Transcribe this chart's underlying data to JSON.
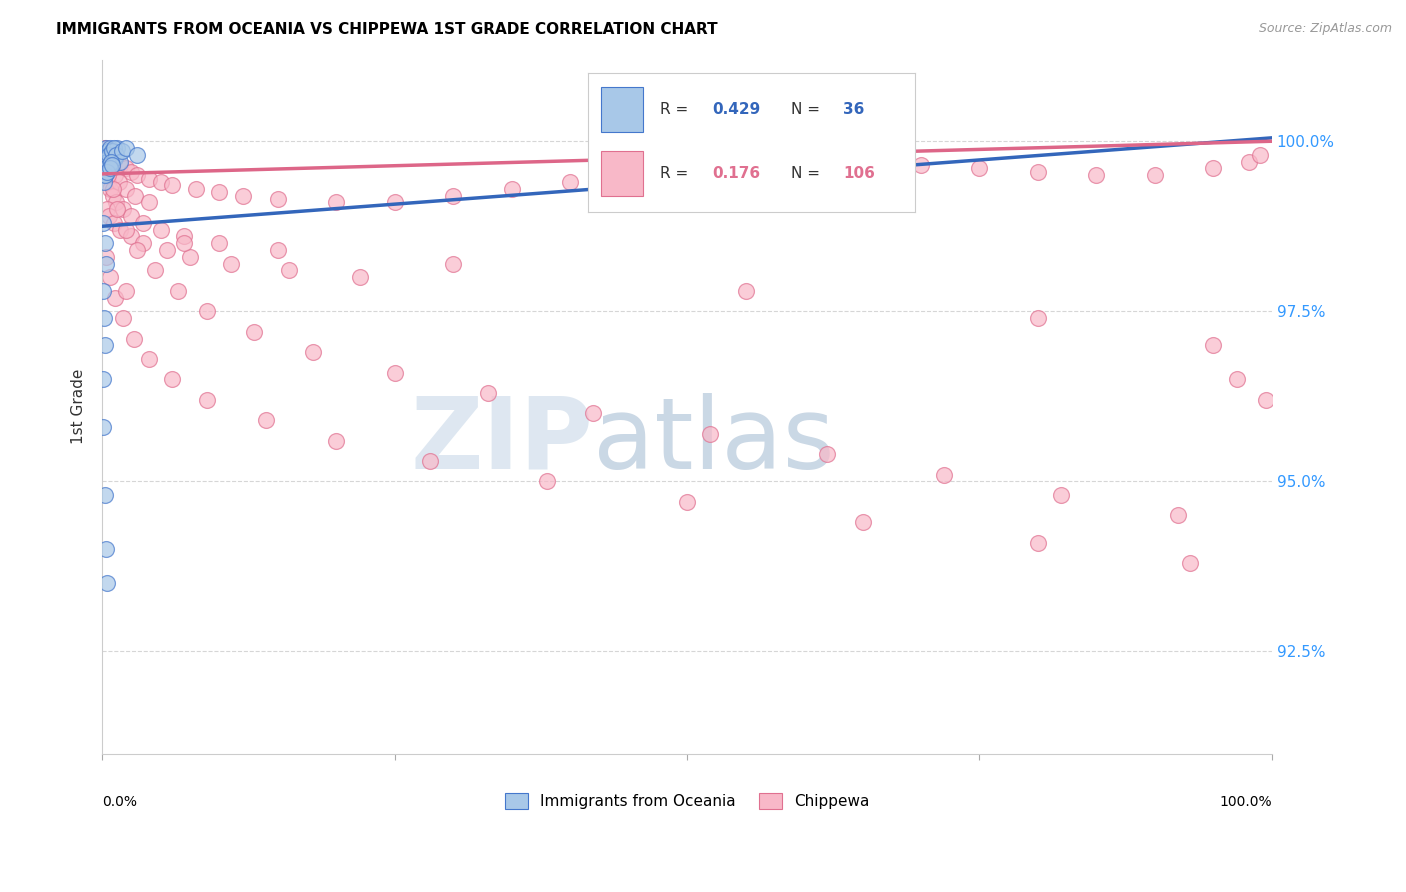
{
  "title": "IMMIGRANTS FROM OCEANIA VS CHIPPEWA 1ST GRADE CORRELATION CHART",
  "source": "Source: ZipAtlas.com",
  "ylabel": "1st Grade",
  "right_ytick_labels": [
    "100.0%",
    "97.5%",
    "95.0%",
    "92.5%"
  ],
  "right_ytick_vals": [
    100.0,
    97.5,
    95.0,
    92.5
  ],
  "blue_face_color": "#a8c8e8",
  "blue_edge_color": "#4477cc",
  "pink_face_color": "#f8b8c8",
  "pink_edge_color": "#e07090",
  "blue_line_color": "#3366bb",
  "pink_line_color": "#dd6688",
  "watermark_zip": "ZIP",
  "watermark_atlas": "atlas",
  "xlim": [
    0.0,
    100.0
  ],
  "ylim": [
    91.0,
    101.2
  ],
  "blue_trend": [
    0.0,
    98.75,
    100.0,
    100.05
  ],
  "pink_trend": [
    0.0,
    99.52,
    100.0,
    100.0
  ],
  "oceania_x": [
    0.3,
    0.5,
    0.7,
    0.9,
    1.1,
    1.3,
    0.4,
    0.6,
    0.8,
    1.0,
    1.2,
    1.5,
    1.7,
    2.0,
    0.2,
    0.35,
    0.55,
    0.75,
    0.15,
    0.25,
    0.45,
    0.65,
    0.85,
    3.0,
    0.1,
    0.2,
    0.3,
    0.1,
    0.15,
    0.25,
    0.05,
    0.1,
    0.2,
    0.3,
    0.4,
    60.0
  ],
  "oceania_y": [
    99.9,
    99.85,
    99.9,
    99.8,
    99.75,
    99.9,
    99.7,
    99.8,
    99.85,
    99.9,
    99.8,
    99.7,
    99.85,
    99.9,
    99.5,
    99.6,
    99.65,
    99.7,
    99.4,
    99.5,
    99.55,
    99.6,
    99.65,
    99.8,
    98.8,
    98.5,
    98.2,
    97.8,
    97.4,
    97.0,
    96.5,
    95.8,
    94.8,
    94.0,
    93.5,
    99.9
  ],
  "chippewa_x": [
    0.2,
    0.4,
    0.6,
    0.8,
    1.0,
    1.5,
    2.0,
    2.5,
    3.0,
    4.0,
    5.0,
    6.0,
    8.0,
    10.0,
    12.0,
    15.0,
    20.0,
    25.0,
    30.0,
    35.0,
    40.0,
    45.0,
    50.0,
    55.0,
    60.0,
    65.0,
    70.0,
    75.0,
    80.0,
    85.0,
    90.0,
    95.0,
    98.0,
    99.0,
    0.3,
    0.5,
    0.7,
    0.9,
    1.2,
    1.8,
    2.5,
    3.5,
    5.0,
    7.0,
    10.0,
    15.0,
    0.3,
    0.5,
    0.8,
    1.1,
    1.4,
    2.0,
    2.8,
    4.0,
    0.4,
    0.6,
    1.0,
    1.5,
    2.5,
    3.5,
    5.5,
    7.5,
    11.0,
    16.0,
    22.0,
    0.2,
    0.5,
    0.9,
    1.3,
    2.0,
    3.0,
    4.5,
    6.5,
    9.0,
    13.0,
    18.0,
    25.0,
    33.0,
    42.0,
    52.0,
    62.0,
    72.0,
    82.0,
    92.0,
    97.0,
    0.35,
    0.65,
    1.1,
    1.8,
    2.7,
    4.0,
    6.0,
    9.0,
    14.0,
    20.0,
    28.0,
    38.0,
    50.0,
    65.0,
    80.0,
    93.0,
    99.5,
    7.0,
    30.0,
    55.0,
    80.0,
    95.0,
    0.5,
    2.0
  ],
  "chippewa_y": [
    99.9,
    99.85,
    99.8,
    99.75,
    99.7,
    99.65,
    99.6,
    99.55,
    99.5,
    99.45,
    99.4,
    99.35,
    99.3,
    99.25,
    99.2,
    99.15,
    99.1,
    99.1,
    99.2,
    99.3,
    99.4,
    99.5,
    99.6,
    99.7,
    99.75,
    99.7,
    99.65,
    99.6,
    99.55,
    99.5,
    99.5,
    99.6,
    99.7,
    99.8,
    99.5,
    99.4,
    99.3,
    99.2,
    99.1,
    99.0,
    98.9,
    98.8,
    98.7,
    98.6,
    98.5,
    98.4,
    99.8,
    99.7,
    99.6,
    99.5,
    99.4,
    99.3,
    99.2,
    99.1,
    99.0,
    98.9,
    98.8,
    98.7,
    98.6,
    98.5,
    98.4,
    98.3,
    98.2,
    98.1,
    98.0,
    99.9,
    99.6,
    99.3,
    99.0,
    98.7,
    98.4,
    98.1,
    97.8,
    97.5,
    97.2,
    96.9,
    96.6,
    96.3,
    96.0,
    95.7,
    95.4,
    95.1,
    94.8,
    94.5,
    96.5,
    98.3,
    98.0,
    97.7,
    97.4,
    97.1,
    96.8,
    96.5,
    96.2,
    95.9,
    95.6,
    95.3,
    95.0,
    94.7,
    94.4,
    94.1,
    93.8,
    96.2,
    98.5,
    98.2,
    97.8,
    97.4,
    97.0,
    99.5,
    97.8
  ]
}
